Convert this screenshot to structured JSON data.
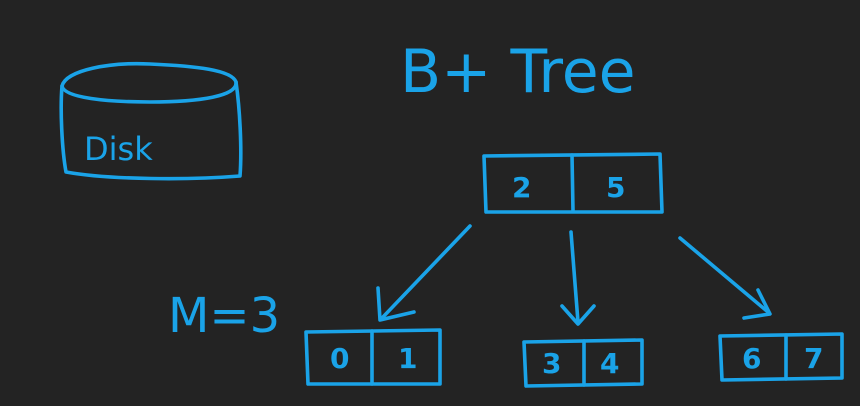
{
  "title": "B+ Tree",
  "disk": {
    "label": "Disk"
  },
  "order_label": "M=3",
  "tree": {
    "root": {
      "keys": [
        "2",
        "5"
      ]
    },
    "leaves": [
      {
        "keys": [
          "0",
          "1"
        ]
      },
      {
        "keys": [
          "3",
          "4"
        ]
      },
      {
        "keys": [
          "6",
          "7"
        ]
      }
    ]
  },
  "colors": {
    "background": "#232323",
    "ink": "#1aa3e8"
  }
}
